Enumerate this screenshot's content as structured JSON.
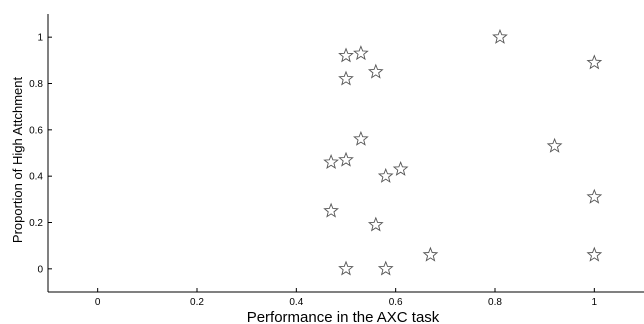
{
  "chart_data": {
    "type": "scatter",
    "title": "",
    "xlabel": "Performance in the AXC task",
    "ylabel": "Proportion of High Attchment",
    "xlim": [
      -0.1,
      1.1
    ],
    "ylim": [
      -0.1,
      1.1
    ],
    "xticks": [
      0,
      0.2,
      0.4,
      0.6,
      0.8,
      1
    ],
    "xtick_labels": [
      "0",
      "0.2",
      "0.4",
      "0.6",
      "0.8",
      "1"
    ],
    "yticks": [
      0,
      0.2,
      0.4,
      0.6,
      0.8,
      1
    ],
    "ytick_labels": [
      "0",
      "0.2",
      "0.4",
      "0.6",
      "0.8",
      "1"
    ],
    "grid": false,
    "marker": "star",
    "marker_color": "#555555",
    "points": [
      {
        "x": 0.5,
        "y": 0.92
      },
      {
        "x": 0.53,
        "y": 0.93
      },
      {
        "x": 0.5,
        "y": 0.82
      },
      {
        "x": 0.56,
        "y": 0.85
      },
      {
        "x": 0.81,
        "y": 1.0
      },
      {
        "x": 1.0,
        "y": 0.89
      },
      {
        "x": 0.53,
        "y": 0.56
      },
      {
        "x": 0.92,
        "y": 0.53
      },
      {
        "x": 0.47,
        "y": 0.46
      },
      {
        "x": 0.5,
        "y": 0.47
      },
      {
        "x": 0.58,
        "y": 0.4
      },
      {
        "x": 0.61,
        "y": 0.43
      },
      {
        "x": 0.47,
        "y": 0.25
      },
      {
        "x": 0.56,
        "y": 0.19
      },
      {
        "x": 1.0,
        "y": 0.31
      },
      {
        "x": 0.67,
        "y": 0.06
      },
      {
        "x": 1.0,
        "y": 0.06
      },
      {
        "x": 0.5,
        "y": 0.0
      },
      {
        "x": 0.58,
        "y": 0.0
      }
    ]
  }
}
